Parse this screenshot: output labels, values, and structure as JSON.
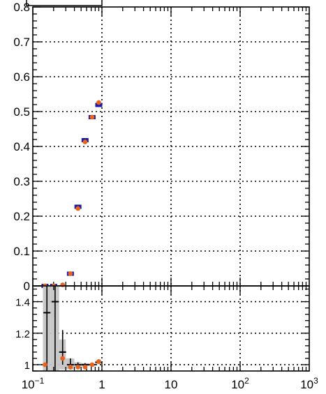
{
  "chart_data": [
    {
      "type": "scatter",
      "panel": "main",
      "xscale": "log",
      "xlim": [
        0.1,
        1000
      ],
      "ylim": [
        0,
        0.8
      ],
      "grid": true,
      "y_ticks": [
        {
          "v": 0,
          "label": "0"
        },
        {
          "v": 0.1,
          "label": "0.1"
        },
        {
          "v": 0.2,
          "label": "0.2"
        },
        {
          "v": 0.3,
          "label": "0.3"
        },
        {
          "v": 0.4,
          "label": "0.4"
        },
        {
          "v": 0.5,
          "label": "0.5"
        },
        {
          "v": 0.6,
          "label": "0.6"
        },
        {
          "v": 0.7,
          "label": "0.7"
        },
        {
          "v": 0.8,
          "label": "0.8"
        }
      ],
      "series": [
        {
          "color": "#1a1aa6",
          "marker": "square",
          "points": [
            {
              "x": 0.15,
              "y": 0
            },
            {
              "x": 0.2,
              "y": 0
            },
            {
              "x": 0.35,
              "y": 0.035
            },
            {
              "x": 0.45,
              "y": 0.227
            },
            {
              "x": 0.57,
              "y": 0.418
            },
            {
              "x": 0.72,
              "y": 0.484
            },
            {
              "x": 0.9,
              "y": 0.519
            }
          ]
        },
        {
          "color": "#e6641e",
          "marker": "circle",
          "points": [
            {
              "x": 0.15,
              "y": 0
            },
            {
              "x": 0.2,
              "y": 0
            },
            {
              "x": 0.27,
              "y": 0.003
            },
            {
              "x": 0.35,
              "y": 0.035
            },
            {
              "x": 0.45,
              "y": 0.222
            },
            {
              "x": 0.57,
              "y": 0.413
            },
            {
              "x": 0.72,
              "y": 0.484
            },
            {
              "x": 0.9,
              "y": 0.526
            }
          ]
        }
      ]
    },
    {
      "type": "scatter",
      "panel": "ratio",
      "xscale": "log",
      "xlim": [
        0.1,
        1000
      ],
      "ylim": [
        0.96,
        1.5
      ],
      "grid": true,
      "x_ticks": [
        {
          "v": 0.1,
          "base": "10",
          "exp": "−1"
        },
        {
          "v": 1,
          "base": "1",
          "exp": ""
        },
        {
          "v": 10,
          "base": "10",
          "exp": ""
        },
        {
          "v": 100,
          "base": "10",
          "exp": "2"
        },
        {
          "v": 1000,
          "base": "10",
          "exp": "3"
        }
      ],
      "y_ticks": [
        {
          "v": 1,
          "label": "1"
        },
        {
          "v": 1.2,
          "label": "1.2"
        },
        {
          "v": 1.4,
          "label": "1.4"
        }
      ],
      "band": [
        {
          "x0": 0.14,
          "x1": 0.18,
          "lo": 0.96,
          "hi": 1.5
        },
        {
          "x0": 0.18,
          "x1": 0.24,
          "lo": 0.96,
          "hi": 1.5
        },
        {
          "x0": 0.24,
          "x1": 0.3,
          "lo": 0.97,
          "hi": 1.16
        },
        {
          "x0": 0.3,
          "x1": 0.4,
          "lo": 0.97,
          "hi": 1.04
        },
        {
          "x0": 0.4,
          "x1": 0.5,
          "lo": 0.985,
          "hi": 1.015
        },
        {
          "x0": 0.5,
          "x1": 0.65,
          "lo": 0.99,
          "hi": 1.01
        },
        {
          "x0": 0.65,
          "x1": 0.8,
          "lo": 0.995,
          "hi": 1.005
        },
        {
          "x0": 0.8,
          "x1": 1.0,
          "lo": 1.005,
          "hi": 1.025
        }
      ],
      "series": [
        {
          "color": "#000000",
          "marker": "cross",
          "points": [
            {
              "x": 0.16,
              "y": 1.33,
              "ylo": 0.96,
              "yhi": 1.5
            },
            {
              "x": 0.21,
              "y": 1.4,
              "ylo": 0.96,
              "yhi": 1.5
            },
            {
              "x": 0.27,
              "y": 1.08,
              "ylo": 1.0,
              "yhi": 1.22
            },
            {
              "x": 0.35,
              "y": 1.0,
              "ylo": 0.97,
              "yhi": 1.04
            },
            {
              "x": 0.45,
              "y": 1.0,
              "ylo": 0.985,
              "yhi": 1.015
            },
            {
              "x": 0.57,
              "y": 1.0,
              "ylo": 0.99,
              "yhi": 1.01
            },
            {
              "x": 0.72,
              "y": 1.0,
              "ylo": 0.995,
              "yhi": 1.005
            },
            {
              "x": 0.9,
              "y": 1.015,
              "ylo": 1.005,
              "yhi": 1.025
            }
          ]
        },
        {
          "color": "#e6641e",
          "marker": "circle",
          "points": [
            {
              "x": 0.15,
              "y": 1.0
            },
            {
              "x": 0.27,
              "y": 1.04
            },
            {
              "x": 0.35,
              "y": 0.985
            },
            {
              "x": 0.45,
              "y": 0.985
            },
            {
              "x": 0.57,
              "y": 0.985
            },
            {
              "x": 0.72,
              "y": 1.0
            },
            {
              "x": 0.9,
              "y": 1.02
            }
          ]
        }
      ]
    }
  ]
}
